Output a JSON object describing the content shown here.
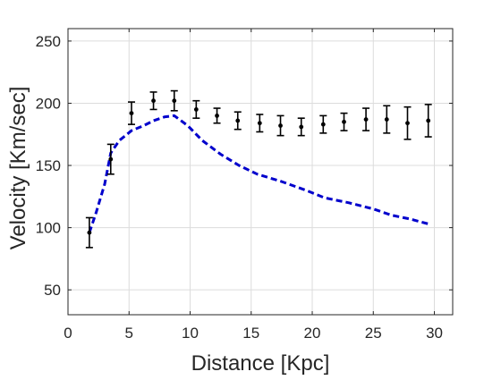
{
  "chart_data": {
    "type": "scatter",
    "title": "",
    "xlabel": "Distance  [Kpc]",
    "ylabel": "Velocity  [Km/sec]",
    "xlim": [
      0,
      31.5
    ],
    "ylim": [
      30,
      260
    ],
    "xticks": [
      0,
      5,
      10,
      15,
      20,
      25,
      30
    ],
    "yticks": [
      50,
      100,
      150,
      200,
      250
    ],
    "grid": true,
    "legend": "none",
    "colors": {
      "observed": "#000000",
      "model": "#0000cc",
      "grid": "#dcdcdc",
      "axes": "#262626"
    },
    "series": [
      {
        "style": "points-with-errorbars",
        "points": [
          {
            "x": 1.75,
            "y": 96,
            "err": 12
          },
          {
            "x": 3.5,
            "y": 155,
            "err": 12
          },
          {
            "x": 5.2,
            "y": 192,
            "err": 9
          },
          {
            "x": 7.0,
            "y": 202,
            "err": 7
          },
          {
            "x": 8.7,
            "y": 202,
            "err": 8
          },
          {
            "x": 10.5,
            "y": 195,
            "err": 7
          },
          {
            "x": 12.2,
            "y": 190,
            "err": 6
          },
          {
            "x": 13.9,
            "y": 186,
            "err": 7
          },
          {
            "x": 15.7,
            "y": 184,
            "err": 7
          },
          {
            "x": 17.4,
            "y": 182,
            "err": 8
          },
          {
            "x": 19.1,
            "y": 181,
            "err": 7
          },
          {
            "x": 20.9,
            "y": 183,
            "err": 7
          },
          {
            "x": 22.6,
            "y": 185,
            "err": 7
          },
          {
            "x": 24.4,
            "y": 187,
            "err": 9
          },
          {
            "x": 26.1,
            "y": 187,
            "err": 11
          },
          {
            "x": 27.8,
            "y": 184,
            "err": 13
          },
          {
            "x": 29.5,
            "y": 186,
            "err": 13
          }
        ]
      },
      {
        "style": "dashed-line",
        "x": [
          1.75,
          2.3,
          3.0,
          3.5,
          4.2,
          5.2,
          6.2,
          7.0,
          7.9,
          8.7,
          9.8,
          11.0,
          12.5,
          14.0,
          15.5,
          17.5,
          19.5,
          21.0,
          23.0,
          25.0,
          26.5,
          28.0,
          29.5
        ],
        "y": [
          96,
          112,
          135,
          160,
          170,
          178,
          182,
          186,
          189,
          190,
          182,
          170,
          159,
          150,
          143,
          137,
          130,
          124,
          120,
          115,
          110,
          107,
          103
        ]
      }
    ]
  }
}
